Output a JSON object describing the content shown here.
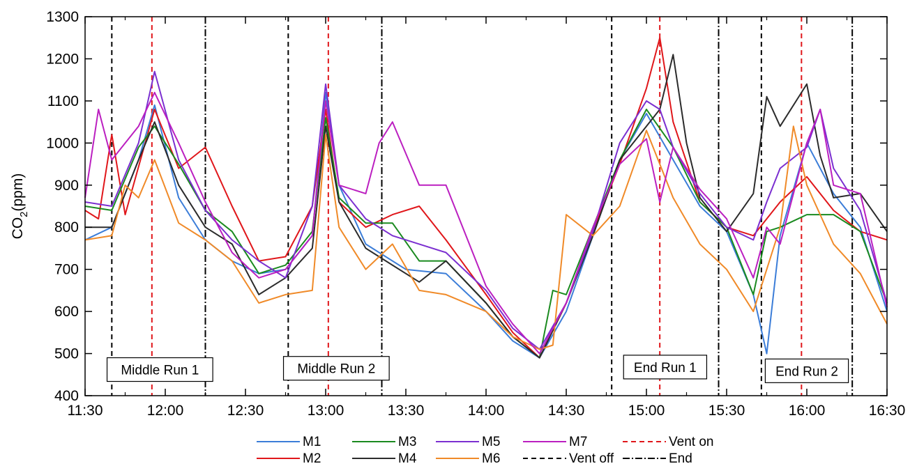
{
  "chart_data": {
    "type": "line",
    "xlabel": "",
    "ylabel": {
      "main": "CO",
      "sub": "2",
      "unit": "(ppm)"
    },
    "xlim": [
      "11:30",
      "16:30"
    ],
    "ylim": [
      400,
      1300
    ],
    "x_ticks": [
      "11:30",
      "12:00",
      "12:30",
      "13:00",
      "13:30",
      "14:00",
      "14:30",
      "15:00",
      "15:30",
      "16:00",
      "16:30"
    ],
    "y_ticks": [
      400,
      500,
      600,
      700,
      800,
      900,
      1000,
      1100,
      1200,
      1300
    ],
    "grid": false,
    "legend_position": "bottom-center",
    "series": [
      {
        "name": "M1",
        "color": "#3b7dd8",
        "points": [
          [
            "11:30",
            770
          ],
          [
            "11:40",
            800
          ],
          [
            "11:50",
            960
          ],
          [
            "11:56",
            1090
          ],
          [
            "12:05",
            870
          ],
          [
            "12:15",
            770
          ],
          [
            "12:25",
            720
          ],
          [
            "12:35",
            690
          ],
          [
            "12:45",
            700
          ],
          [
            "12:55",
            780
          ],
          [
            "13:00",
            1120
          ],
          [
            "13:05",
            900
          ],
          [
            "13:15",
            760
          ],
          [
            "13:30",
            700
          ],
          [
            "13:45",
            690
          ],
          [
            "14:00",
            600
          ],
          [
            "14:10",
            530
          ],
          [
            "14:20",
            490
          ],
          [
            "14:30",
            600
          ],
          [
            "14:40",
            780
          ],
          [
            "14:50",
            960
          ],
          [
            "15:00",
            1070
          ],
          [
            "15:10",
            960
          ],
          [
            "15:20",
            850
          ],
          [
            "15:30",
            790
          ],
          [
            "15:40",
            640
          ],
          [
            "15:45",
            500
          ],
          [
            "15:50",
            780
          ],
          [
            "16:00",
            1000
          ],
          [
            "16:10",
            880
          ],
          [
            "16:20",
            800
          ],
          [
            "16:30",
            600
          ]
        ]
      },
      {
        "name": "M2",
        "color": "#e0161a",
        "points": [
          [
            "11:30",
            840
          ],
          [
            "11:35",
            820
          ],
          [
            "11:40",
            1020
          ],
          [
            "11:45",
            830
          ],
          [
            "11:56",
            1080
          ],
          [
            "12:05",
            940
          ],
          [
            "12:15",
            990
          ],
          [
            "12:25",
            850
          ],
          [
            "12:35",
            720
          ],
          [
            "12:45",
            730
          ],
          [
            "12:55",
            850
          ],
          [
            "13:00",
            1080
          ],
          [
            "13:05",
            860
          ],
          [
            "13:15",
            800
          ],
          [
            "13:25",
            830
          ],
          [
            "13:35",
            850
          ],
          [
            "13:45",
            770
          ],
          [
            "14:00",
            640
          ],
          [
            "14:10",
            550
          ],
          [
            "14:20",
            490
          ],
          [
            "14:30",
            620
          ],
          [
            "14:40",
            790
          ],
          [
            "14:50",
            950
          ],
          [
            "15:00",
            1130
          ],
          [
            "15:05",
            1250
          ],
          [
            "15:10",
            1050
          ],
          [
            "15:20",
            860
          ],
          [
            "15:30",
            800
          ],
          [
            "15:40",
            780
          ],
          [
            "15:45",
            820
          ],
          [
            "15:50",
            860
          ],
          [
            "16:00",
            920
          ],
          [
            "16:10",
            840
          ],
          [
            "16:20",
            790
          ],
          [
            "16:30",
            770
          ]
        ]
      },
      {
        "name": "M3",
        "color": "#1a8a1f",
        "points": [
          [
            "11:30",
            850
          ],
          [
            "11:40",
            840
          ],
          [
            "11:50",
            990
          ],
          [
            "11:56",
            1040
          ],
          [
            "12:05",
            950
          ],
          [
            "12:15",
            840
          ],
          [
            "12:25",
            790
          ],
          [
            "12:35",
            690
          ],
          [
            "12:45",
            710
          ],
          [
            "12:55",
            790
          ],
          [
            "13:00",
            1060
          ],
          [
            "13:05",
            870
          ],
          [
            "13:15",
            810
          ],
          [
            "13:25",
            810
          ],
          [
            "13:35",
            720
          ],
          [
            "13:45",
            720
          ],
          [
            "14:00",
            620
          ],
          [
            "14:10",
            540
          ],
          [
            "14:20",
            490
          ],
          [
            "14:25",
            650
          ],
          [
            "14:30",
            640
          ],
          [
            "14:40",
            800
          ],
          [
            "14:50",
            960
          ],
          [
            "15:00",
            1080
          ],
          [
            "15:10",
            990
          ],
          [
            "15:20",
            860
          ],
          [
            "15:30",
            800
          ],
          [
            "15:40",
            640
          ],
          [
            "15:45",
            790
          ],
          [
            "15:50",
            800
          ],
          [
            "16:00",
            830
          ],
          [
            "16:10",
            830
          ],
          [
            "16:20",
            790
          ],
          [
            "16:30",
            620
          ]
        ]
      },
      {
        "name": "M4",
        "color": "#2b2b2b",
        "points": [
          [
            "11:30",
            800
          ],
          [
            "11:40",
            800
          ],
          [
            "11:50",
            960
          ],
          [
            "11:56",
            1050
          ],
          [
            "12:05",
            900
          ],
          [
            "12:15",
            800
          ],
          [
            "12:25",
            760
          ],
          [
            "12:35",
            640
          ],
          [
            "12:45",
            680
          ],
          [
            "12:55",
            750
          ],
          [
            "13:00",
            1040
          ],
          [
            "13:05",
            860
          ],
          [
            "13:15",
            750
          ],
          [
            "13:25",
            710
          ],
          [
            "13:35",
            670
          ],
          [
            "13:45",
            720
          ],
          [
            "14:00",
            620
          ],
          [
            "14:10",
            540
          ],
          [
            "14:20",
            490
          ],
          [
            "14:30",
            620
          ],
          [
            "14:40",
            780
          ],
          [
            "14:50",
            960
          ],
          [
            "15:00",
            1040
          ],
          [
            "15:05",
            1080
          ],
          [
            "15:10",
            1210
          ],
          [
            "15:15",
            1000
          ],
          [
            "15:20",
            870
          ],
          [
            "15:30",
            790
          ],
          [
            "15:40",
            880
          ],
          [
            "15:45",
            1110
          ],
          [
            "15:50",
            1040
          ],
          [
            "16:00",
            1140
          ],
          [
            "16:05",
            970
          ],
          [
            "16:10",
            870
          ],
          [
            "16:20",
            880
          ],
          [
            "16:30",
            790
          ]
        ]
      },
      {
        "name": "M5",
        "color": "#7b2fd0",
        "points": [
          [
            "11:30",
            860
          ],
          [
            "11:40",
            850
          ],
          [
            "11:50",
            1000
          ],
          [
            "11:56",
            1170
          ],
          [
            "12:05",
            960
          ],
          [
            "12:15",
            840
          ],
          [
            "12:25",
            770
          ],
          [
            "12:35",
            720
          ],
          [
            "12:45",
            680
          ],
          [
            "12:55",
            850
          ],
          [
            "13:00",
            1140
          ],
          [
            "13:05",
            900
          ],
          [
            "13:15",
            820
          ],
          [
            "13:25",
            780
          ],
          [
            "13:35",
            760
          ],
          [
            "13:45",
            740
          ],
          [
            "14:00",
            650
          ],
          [
            "14:10",
            560
          ],
          [
            "14:20",
            510
          ],
          [
            "14:30",
            620
          ],
          [
            "14:40",
            790
          ],
          [
            "14:50",
            1000
          ],
          [
            "15:00",
            1100
          ],
          [
            "15:05",
            1080
          ],
          [
            "15:10",
            990
          ],
          [
            "15:20",
            880
          ],
          [
            "15:30",
            800
          ],
          [
            "15:40",
            770
          ],
          [
            "15:45",
            860
          ],
          [
            "15:50",
            940
          ],
          [
            "16:00",
            990
          ],
          [
            "16:05",
            1080
          ],
          [
            "16:10",
            940
          ],
          [
            "16:20",
            840
          ],
          [
            "16:30",
            620
          ]
        ]
      },
      {
        "name": "M6",
        "color": "#f08a28",
        "points": [
          [
            "11:30",
            770
          ],
          [
            "11:40",
            780
          ],
          [
            "11:45",
            900
          ],
          [
            "11:50",
            870
          ],
          [
            "11:56",
            960
          ],
          [
            "12:05",
            810
          ],
          [
            "12:15",
            770
          ],
          [
            "12:25",
            720
          ],
          [
            "12:35",
            620
          ],
          [
            "12:45",
            640
          ],
          [
            "12:55",
            650
          ],
          [
            "13:00",
            1020
          ],
          [
            "13:05",
            800
          ],
          [
            "13:15",
            700
          ],
          [
            "13:25",
            760
          ],
          [
            "13:35",
            650
          ],
          [
            "13:45",
            640
          ],
          [
            "14:00",
            600
          ],
          [
            "14:10",
            540
          ],
          [
            "14:20",
            510
          ],
          [
            "14:25",
            520
          ],
          [
            "14:30",
            830
          ],
          [
            "14:40",
            780
          ],
          [
            "14:50",
            850
          ],
          [
            "15:00",
            1030
          ],
          [
            "15:10",
            870
          ],
          [
            "15:20",
            760
          ],
          [
            "15:30",
            700
          ],
          [
            "15:40",
            600
          ],
          [
            "15:45",
            700
          ],
          [
            "15:50",
            800
          ],
          [
            "15:55",
            1040
          ],
          [
            "16:00",
            900
          ],
          [
            "16:10",
            760
          ],
          [
            "16:20",
            690
          ],
          [
            "16:30",
            570
          ]
        ]
      },
      {
        "name": "M7",
        "color": "#bb1fc0",
        "points": [
          [
            "11:30",
            870
          ],
          [
            "11:35",
            1080
          ],
          [
            "11:40",
            960
          ],
          [
            "11:50",
            1040
          ],
          [
            "11:56",
            1120
          ],
          [
            "12:05",
            1000
          ],
          [
            "12:15",
            860
          ],
          [
            "12:25",
            740
          ],
          [
            "12:35",
            680
          ],
          [
            "12:45",
            700
          ],
          [
            "12:55",
            780
          ],
          [
            "13:00",
            1100
          ],
          [
            "13:05",
            900
          ],
          [
            "13:15",
            880
          ],
          [
            "13:20",
            1000
          ],
          [
            "13:25",
            1050
          ],
          [
            "13:35",
            900
          ],
          [
            "13:45",
            900
          ],
          [
            "14:00",
            660
          ],
          [
            "14:10",
            570
          ],
          [
            "14:20",
            500
          ],
          [
            "14:30",
            620
          ],
          [
            "14:40",
            800
          ],
          [
            "14:50",
            950
          ],
          [
            "15:00",
            1010
          ],
          [
            "15:05",
            860
          ],
          [
            "15:10",
            990
          ],
          [
            "15:20",
            890
          ],
          [
            "15:30",
            820
          ],
          [
            "15:40",
            680
          ],
          [
            "15:45",
            800
          ],
          [
            "15:50",
            760
          ],
          [
            "16:00",
            1000
          ],
          [
            "16:05",
            1080
          ],
          [
            "16:10",
            900
          ],
          [
            "16:20",
            880
          ],
          [
            "16:30",
            610
          ]
        ]
      }
    ],
    "reference_lines": [
      {
        "name": "Vent off",
        "color": "#000000",
        "dash": "7 5",
        "times": [
          "11:40",
          "12:46",
          "14:47",
          "15:43"
        ]
      },
      {
        "name": "Vent on",
        "color": "#e0161a",
        "dash": "7 5",
        "times": [
          "11:55",
          "13:01",
          "15:05",
          "15:58"
        ]
      },
      {
        "name": "End",
        "color": "#000000",
        "dash": "10 3 2 3",
        "times": [
          "12:15",
          "13:21",
          "15:27",
          "16:17"
        ]
      }
    ],
    "legend": {
      "rows": [
        [
          "M1",
          "M3",
          "M5",
          "M7",
          "Vent on"
        ],
        [
          "M2",
          "M4",
          "M6",
          "Vent off",
          "End"
        ]
      ]
    },
    "annotations": [
      {
        "text": "Middle Run 1",
        "x": "11:58",
        "y": 462
      },
      {
        "text": "Middle Run 2",
        "x": "13:04",
        "y": 465
      },
      {
        "text": "End Run 1",
        "x": "15:07",
        "y": 468
      },
      {
        "text": "End Run 2",
        "x": "16:00",
        "y": 459
      }
    ]
  }
}
